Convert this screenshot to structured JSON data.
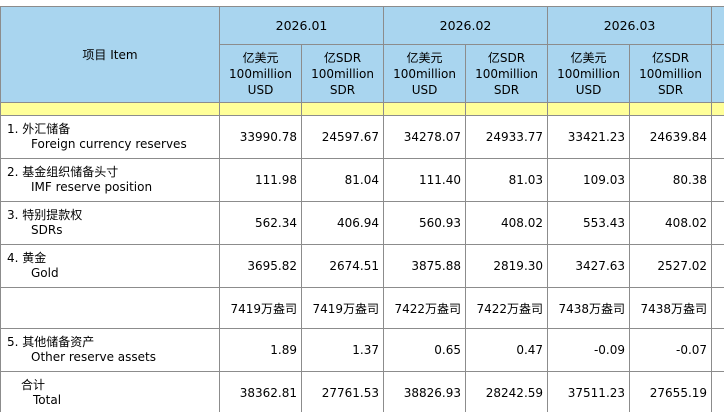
{
  "header": {
    "item_label": "项目 Item",
    "months": [
      "2026.01",
      "2026.02",
      "2026.03"
    ],
    "units": [
      {
        "cn": "亿美元",
        "amount": "100million",
        "currency": "USD"
      },
      {
        "cn": "亿SDR",
        "amount": "100million",
        "currency": "SDR"
      }
    ]
  },
  "rows": [
    {
      "cn": "1. 外汇储备",
      "en": "Foreign currency reserves",
      "values": [
        "33990.78",
        "24597.67",
        "34278.07",
        "24933.77",
        "33421.23",
        "24639.84"
      ]
    },
    {
      "cn": "2. 基金组织储备头寸",
      "en": "IMF reserve position",
      "values": [
        "111.98",
        "81.04",
        "111.40",
        "81.03",
        "109.03",
        "80.38"
      ]
    },
    {
      "cn": "3. 特别提款权",
      "en": "SDRs",
      "values": [
        "562.34",
        "406.94",
        "560.93",
        "408.02",
        "553.43",
        "408.02"
      ]
    },
    {
      "cn": "4. 黄金",
      "en": "Gold",
      "values": [
        "3695.82",
        "2674.51",
        "3875.88",
        "2819.30",
        "3427.63",
        "2527.02"
      ]
    },
    {
      "cn": "",
      "en": "",
      "values": [
        "7419万盎司",
        "7419万盎司",
        "7422万盎司",
        "7422万盎司",
        "7438万盎司",
        "7438万盎司"
      ]
    },
    {
      "cn": "5. 其他储备资产",
      "en": "Other reserve assets",
      "values": [
        "1.89",
        "1.37",
        "0.65",
        "0.47",
        "-0.09",
        "-0.07"
      ]
    },
    {
      "cn": "合计",
      "en": "Total",
      "values": [
        "38362.81",
        "27761.53",
        "38826.93",
        "28242.59",
        "37511.23",
        "27655.19"
      ]
    }
  ]
}
